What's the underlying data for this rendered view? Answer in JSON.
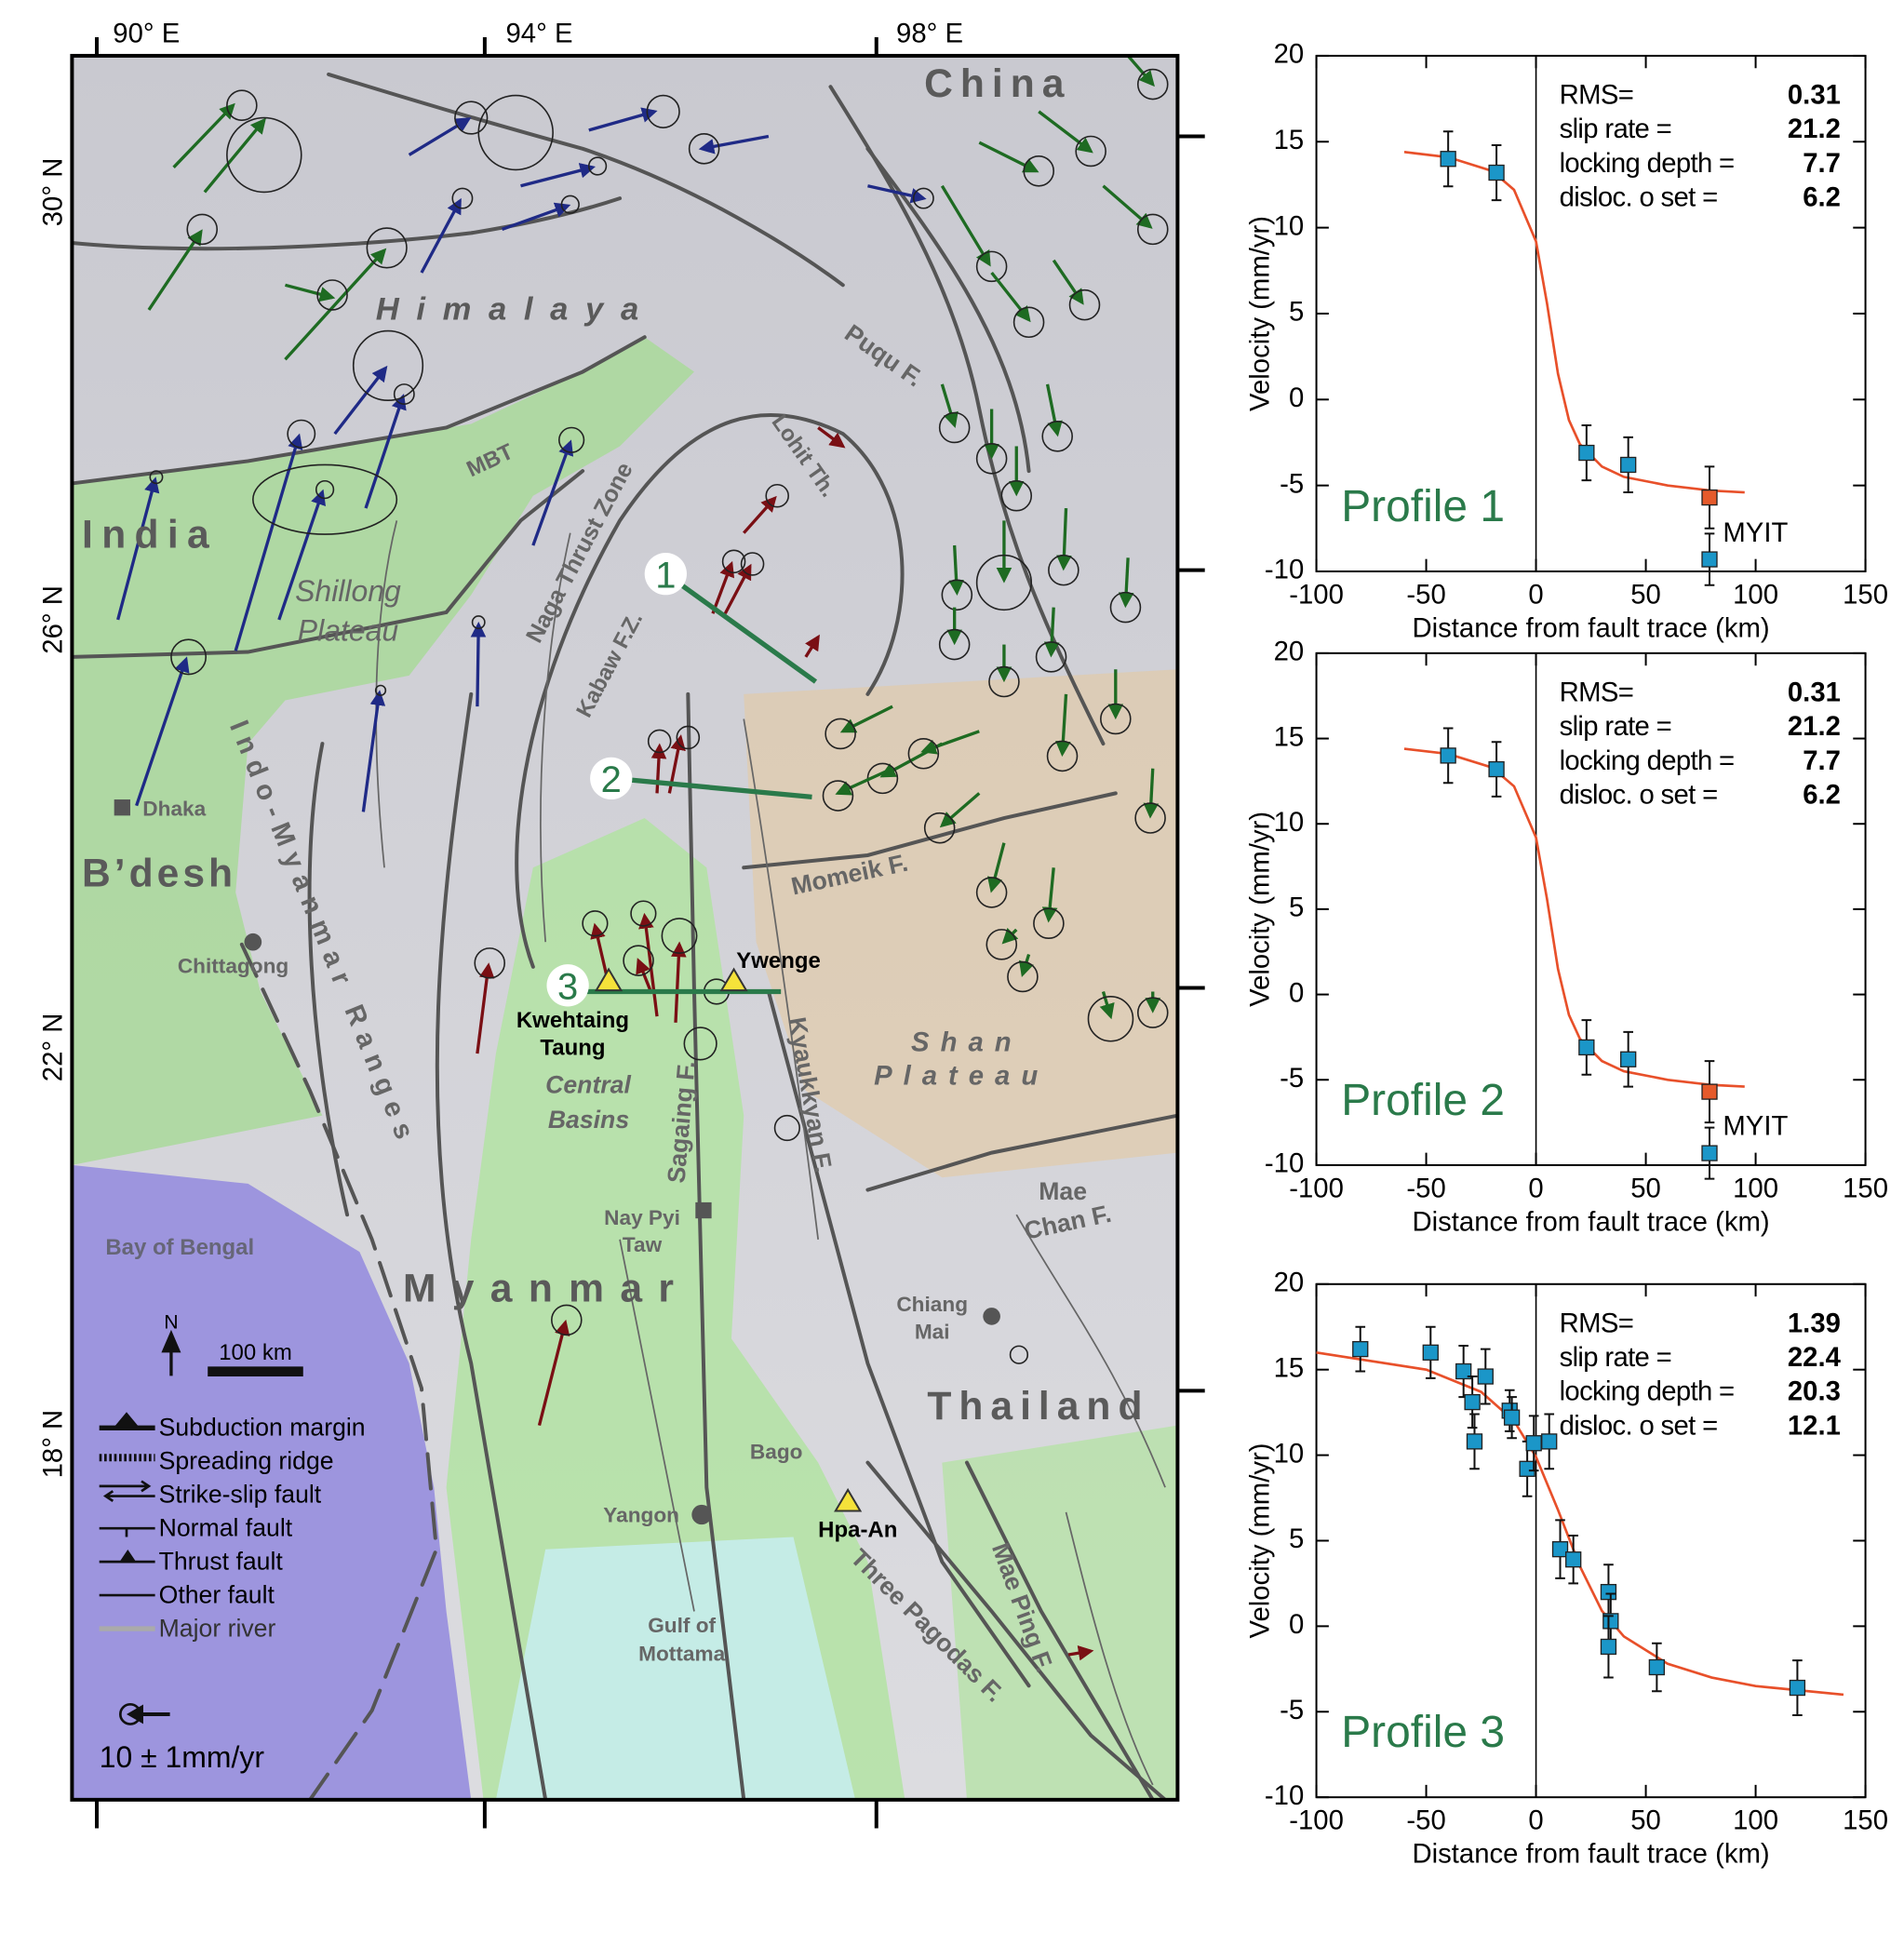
{
  "map": {
    "lon_labels": [
      "90° E",
      "94° E",
      "98° E"
    ],
    "lat_labels": [
      "30° N",
      "26° N",
      "22° N",
      "18° N"
    ],
    "regions": [
      "China",
      "Himalaya",
      "India",
      "B’desh",
      "Myanmar",
      "Thailand",
      "Shan",
      "Plateau"
    ],
    "features": [
      "Shillong",
      "Plateau",
      "Indo-Myanmar Ranges",
      "Naga Thrust Zone",
      "Kabaw F.Z.",
      "MBT",
      "Puqu F.",
      "Lohit Th.",
      "Momeik F.",
      "Sagaing F.",
      "Kyaukkyan F.",
      "Central",
      "Basins",
      "Mae",
      "Chan F.",
      "Mae Ping F.",
      "Three Pagodas F.",
      "Bay of Bengal",
      "Gulf of",
      "Mottama"
    ],
    "places": [
      "Dhaka",
      "Chittagong",
      "Nay Pyi",
      "Taw",
      "Chiang",
      "Mai",
      "Yangon",
      "Bago",
      "Hpa-An",
      "Kwehtaing",
      "Taung",
      "Ywenge"
    ],
    "profiles": [
      "1",
      "2",
      "3"
    ],
    "legend": [
      "Subduction margin",
      "Spreading ridge",
      "Strike-slip fault",
      "Normal fault",
      "Thrust fault",
      "Other fault",
      "Major river"
    ],
    "north": "N",
    "scale_label": "100 km",
    "velocity_scale": "10 ± 1mm/yr"
  },
  "chart_data": [
    {
      "type": "scatter",
      "xlabel": "Distance from fault trace (km)",
      "ylabel": "Velocity (mm/yr)",
      "xlim": [
        -100,
        150
      ],
      "xticks": [
        -100,
        -50,
        0,
        50,
        100,
        150
      ],
      "ylim": [
        -10,
        20
      ],
      "yticks": [
        -10,
        -5,
        0,
        5,
        10,
        15,
        20
      ],
      "annotation": "Profile 1",
      "point_label": "MYIT",
      "stats": [
        {
          "label": "RMS=",
          "value": 0.31
        },
        {
          "label": "slip rate =",
          "value": 21.2
        },
        {
          "label": "locking depth =",
          "value": 7.7
        },
        {
          "label": "disloc. o set =",
          "value": 6.2
        }
      ],
      "series": [
        {
          "kind": "line",
          "color": "#e8502a",
          "x": [
            -60,
            -40,
            -20,
            -10,
            0,
            5,
            10,
            15,
            20,
            30,
            40,
            60,
            80,
            95
          ],
          "values": [
            14.4,
            14.1,
            13.3,
            12.2,
            9.2,
            5.6,
            1.5,
            -1.2,
            -2.6,
            -3.9,
            -4.5,
            -5.0,
            -5.3,
            -5.4
          ]
        },
        {
          "kind": "points",
          "color": "#1b96c8",
          "x": [
            -40,
            -18,
            23,
            42,
            79
          ],
          "values": [
            14,
            13.2,
            -3.1,
            -3.8,
            -9.3
          ],
          "errors": [
            1.6,
            1.6,
            1.6,
            1.6,
            1.5
          ]
        },
        {
          "kind": "points",
          "color": "#e55a2b",
          "x": [
            79
          ],
          "values": [
            -5.7
          ],
          "errors": [
            1.8
          ]
        }
      ]
    },
    {
      "type": "scatter",
      "xlabel": "Distance from fault trace (km)",
      "ylabel": "Velocity (mm/yr)",
      "xlim": [
        -100,
        150
      ],
      "xticks": [
        -100,
        -50,
        0,
        50,
        100,
        150
      ],
      "ylim": [
        -10,
        20
      ],
      "yticks": [
        -10,
        -5,
        0,
        5,
        10,
        15,
        20
      ],
      "annotation": "Profile 2",
      "point_label": "MYIT",
      "stats": [
        {
          "label": "RMS=",
          "value": 0.31
        },
        {
          "label": "slip rate =",
          "value": 21.2
        },
        {
          "label": "locking depth =",
          "value": 7.7
        },
        {
          "label": "disloc. o set =",
          "value": 6.2
        }
      ],
      "series": [
        {
          "kind": "line",
          "color": "#e8502a",
          "x": [
            -60,
            -40,
            -20,
            -10,
            0,
            5,
            10,
            15,
            20,
            30,
            40,
            60,
            80,
            95
          ],
          "values": [
            14.4,
            14.1,
            13.3,
            12.2,
            9.2,
            5.6,
            1.5,
            -1.2,
            -2.6,
            -3.9,
            -4.5,
            -5.0,
            -5.3,
            -5.4
          ]
        },
        {
          "kind": "points",
          "color": "#1b96c8",
          "x": [
            -40,
            -18,
            23,
            42,
            79
          ],
          "values": [
            14,
            13.2,
            -3.1,
            -3.8,
            -9.3
          ],
          "errors": [
            1.6,
            1.6,
            1.6,
            1.6,
            1.5
          ]
        },
        {
          "kind": "points",
          "color": "#e55a2b",
          "x": [
            79
          ],
          "values": [
            -5.7
          ],
          "errors": [
            1.8
          ]
        }
      ]
    },
    {
      "type": "scatter",
      "xlabel": "Distance from fault trace (km)",
      "ylabel": "Velocity (mm/yr)",
      "xlim": [
        -100,
        150
      ],
      "xticks": [
        -100,
        -50,
        0,
        50,
        100,
        150
      ],
      "ylim": [
        -10,
        20
      ],
      "yticks": [
        -10,
        -5,
        0,
        5,
        10,
        15,
        20
      ],
      "annotation": "Profile 3",
      "stats": [
        {
          "label": "RMS=",
          "value": 1.39
        },
        {
          "label": "slip rate =",
          "value": 22.4
        },
        {
          "label": "locking depth =",
          "value": 20.3
        },
        {
          "label": "disloc. o set =",
          "value": 12.1
        }
      ],
      "series": [
        {
          "kind": "line",
          "color": "#e8502a",
          "x": [
            -100,
            -50,
            -25,
            -10,
            0,
            10,
            20,
            30,
            40,
            60,
            80,
            100,
            140
          ],
          "values": [
            16.0,
            15.0,
            13.7,
            12.0,
            9.9,
            6.8,
            3.5,
            0.9,
            -0.6,
            -2.2,
            -3.0,
            -3.5,
            -4.0
          ]
        },
        {
          "kind": "points",
          "color": "#1b96c8",
          "x": [
            -80,
            -48,
            -33,
            -29,
            -28,
            -23,
            -12,
            -11,
            -4,
            -1,
            6,
            11,
            17,
            33,
            34,
            33,
            55,
            119
          ],
          "values": [
            16.2,
            16,
            14.9,
            13.1,
            10.8,
            14.6,
            12.6,
            12.2,
            9.2,
            10.7,
            10.8,
            4.5,
            3.9,
            2.0,
            0.3,
            -1.2,
            -2.4,
            -3.6
          ],
          "errors": [
            1.3,
            1.5,
            1.5,
            1.5,
            1.6,
            1.6,
            1.2,
            1.2,
            1.6,
            1.6,
            1.6,
            1.7,
            1.4,
            1.6,
            1.6,
            1.8,
            1.4,
            1.6
          ]
        }
      ]
    }
  ]
}
